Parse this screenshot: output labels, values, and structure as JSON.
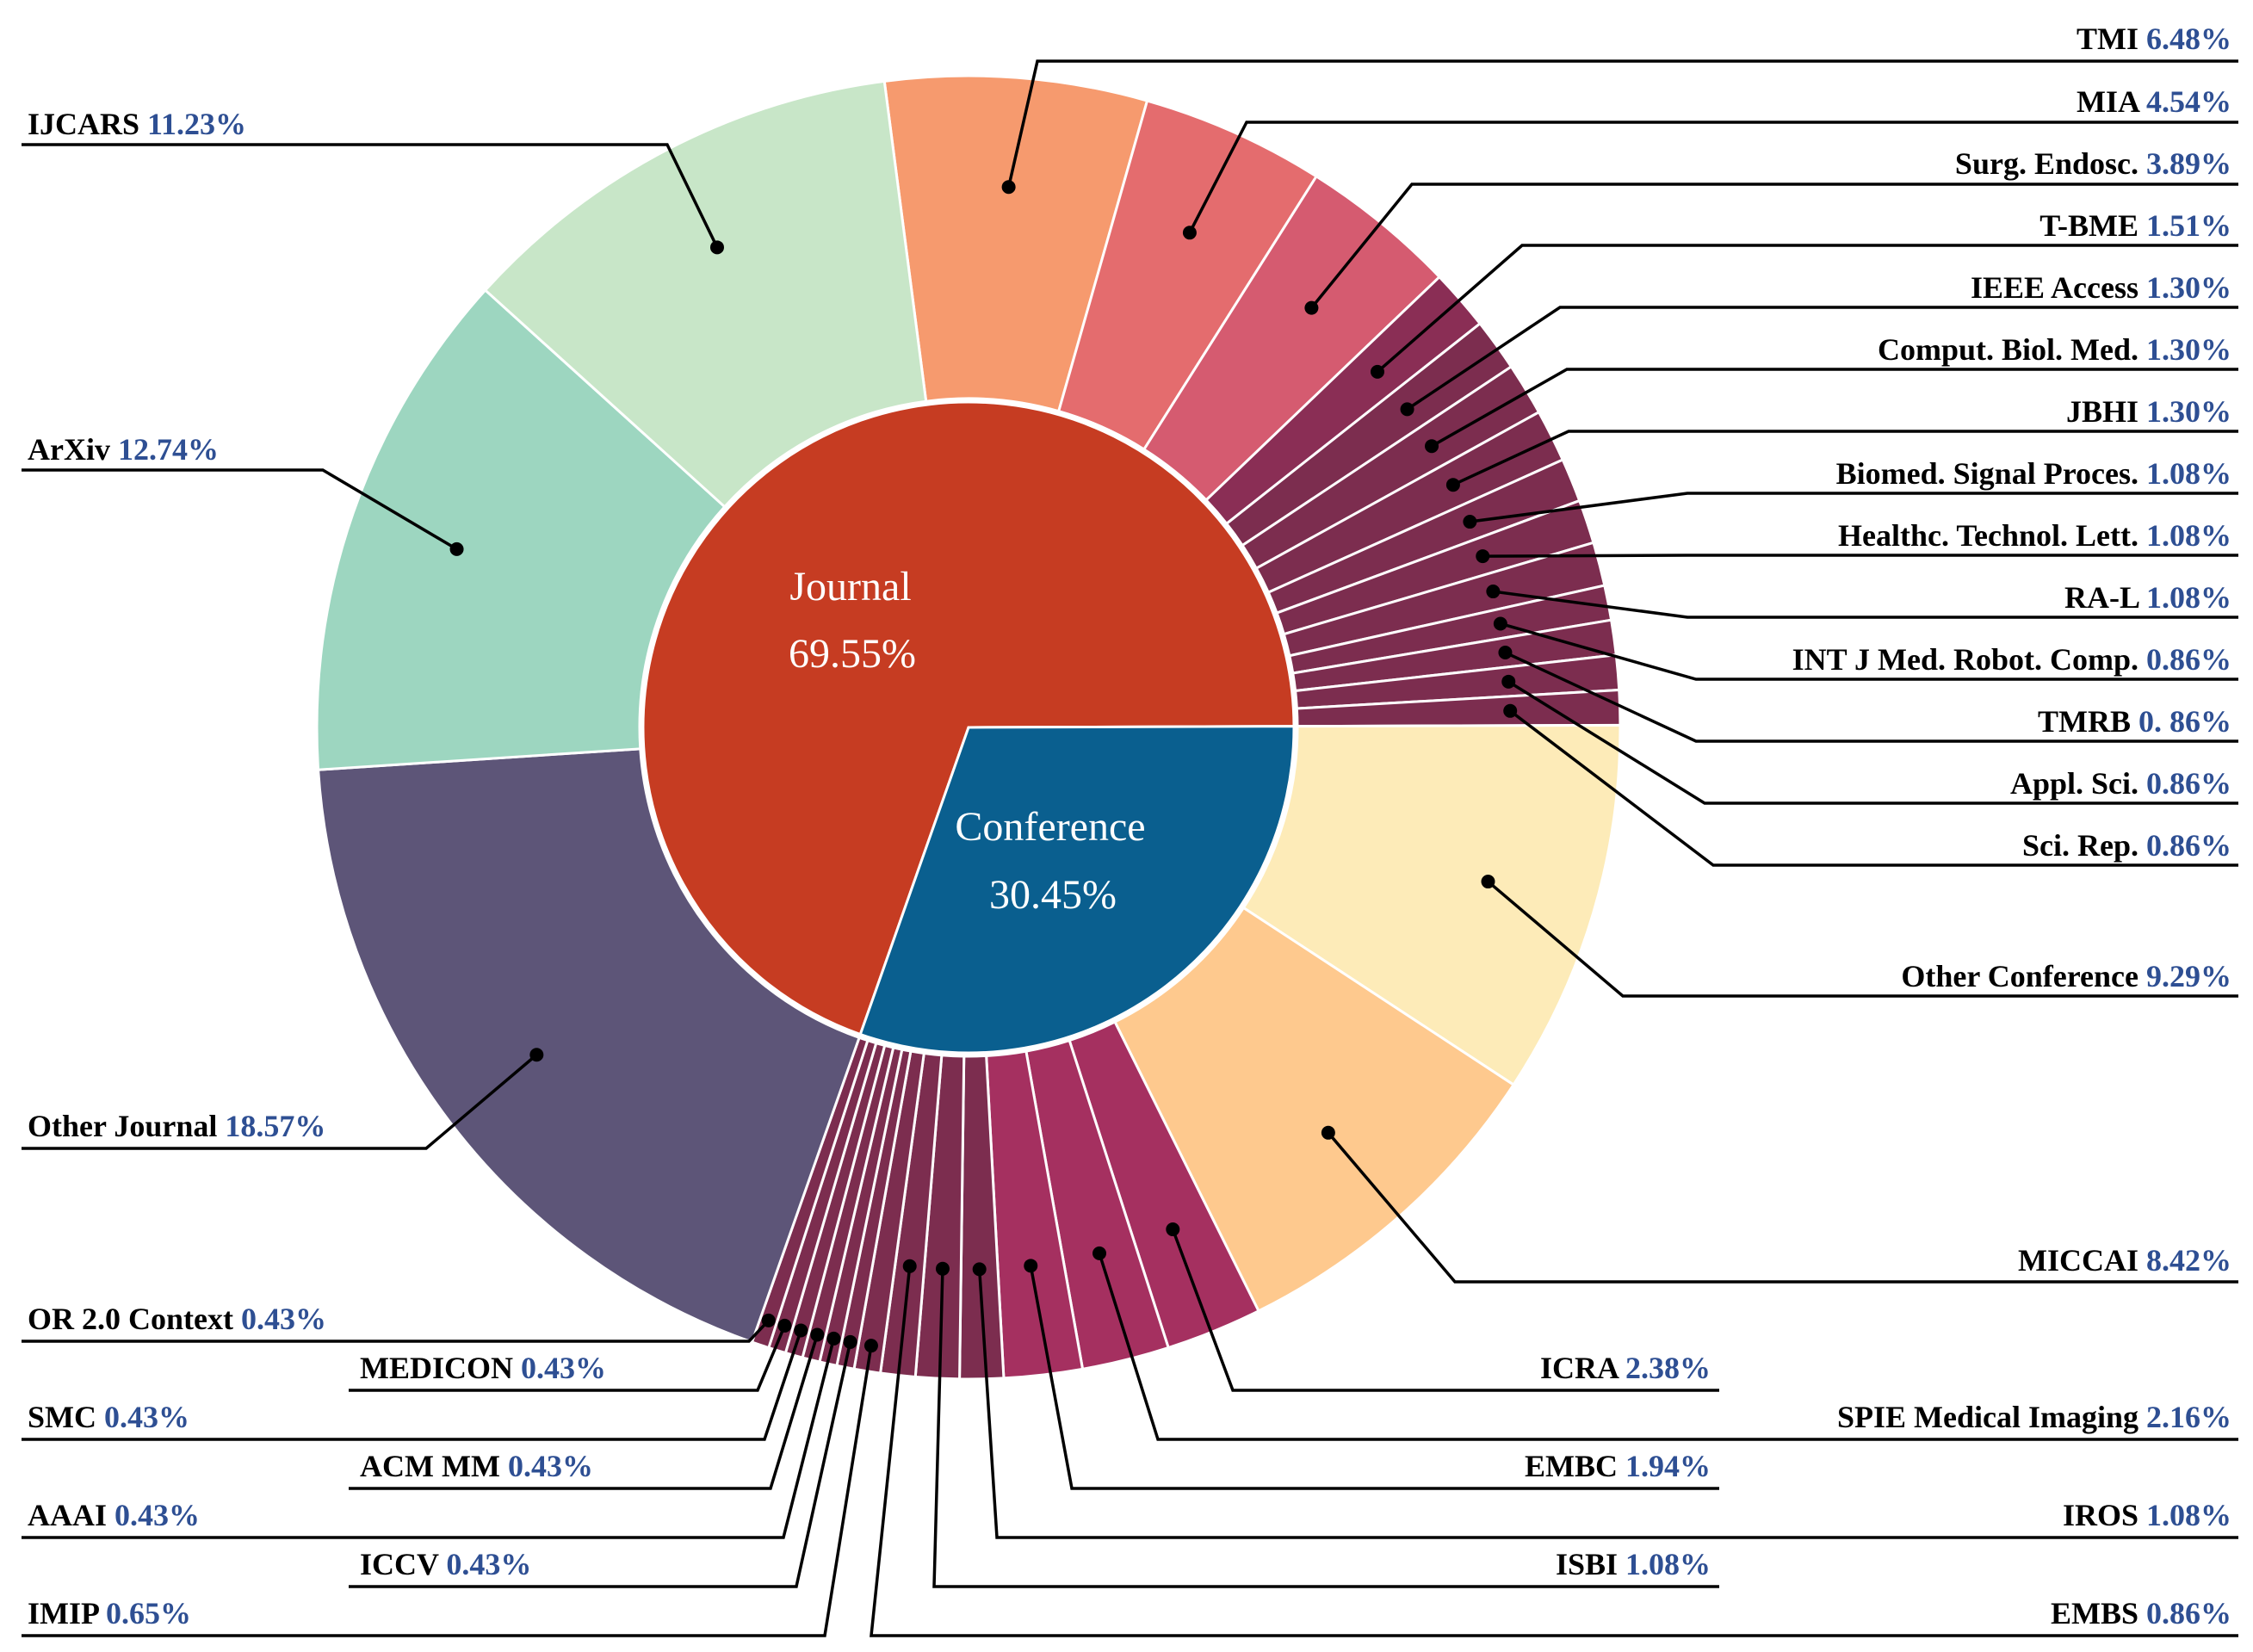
{
  "chart_data": {
    "type": "pie",
    "inner": [
      {
        "name": "Journal",
        "value": 69.55,
        "label": "69.55%",
        "color": "#c63c22"
      },
      {
        "name": "Conference",
        "value": 30.45,
        "label": "30.45%",
        "color": "#0a5f8f"
      }
    ],
    "outer": [
      {
        "name": "TMI",
        "pct": "6.48%",
        "value": 6.48,
        "color": "#f69a6e"
      },
      {
        "name": "MIA",
        "pct": "4.54%",
        "value": 4.54,
        "color": "#e46c6e"
      },
      {
        "name": "Surg. Endosc.",
        "pct": "3.89%",
        "value": 3.89,
        "color": "#d55b70"
      },
      {
        "name": "T-BME",
        "pct": "1.51%",
        "value": 1.51,
        "color": "#8a2e55"
      },
      {
        "name": "IEEE Access",
        "pct": "1.30%",
        "value": 1.3,
        "color": "#7c2d4f"
      },
      {
        "name": "Comput. Biol. Med.",
        "pct": "1.30%",
        "value": 1.3,
        "color": "#7c2d4f"
      },
      {
        "name": "JBHI",
        "pct": "1.30%",
        "value": 1.3,
        "color": "#7c2d4f"
      },
      {
        "name": "Biomed. Signal Proces.",
        "pct": "1.08%",
        "value": 1.08,
        "color": "#7c2d4f"
      },
      {
        "name": "Healthc. Technol. Lett.",
        "pct": "1.08%",
        "value": 1.08,
        "color": "#7c2d4f"
      },
      {
        "name": "RA-L",
        "pct": "1.08%",
        "value": 1.08,
        "color": "#7c2d4f"
      },
      {
        "name": "INT J Med. Robot. Comp.",
        "pct": "0.86%",
        "value": 0.86,
        "color": "#7c2d4f"
      },
      {
        "name": "TMRB",
        "pct": "0. 86%",
        "value": 0.86,
        "color": "#7c2d4f"
      },
      {
        "name": "Appl. Sci.",
        "pct": "0.86%",
        "value": 0.86,
        "color": "#7c2d4f"
      },
      {
        "name": "Sci. Rep.",
        "pct": "0.86%",
        "value": 0.86,
        "color": "#7c2d4f"
      },
      {
        "name": "Other Conference",
        "pct": "9.29%",
        "value": 9.29,
        "color": "#fdebb8"
      },
      {
        "name": "MICCAI",
        "pct": "8.42%",
        "value": 8.42,
        "color": "#fec98e"
      },
      {
        "name": "ICRA",
        "pct": "2.38%",
        "value": 2.38,
        "color": "#a53060"
      },
      {
        "name": "SPIE Medical Imaging",
        "pct": "2.16%",
        "value": 2.16,
        "color": "#a53060"
      },
      {
        "name": "EMBC",
        "pct": "1.94%",
        "value": 1.94,
        "color": "#a53060"
      },
      {
        "name": "IROS",
        "pct": "1.08%",
        "value": 1.08,
        "color": "#7c2d4f"
      },
      {
        "name": "ISBI",
        "pct": "1.08%",
        "value": 1.08,
        "color": "#7c2d4f"
      },
      {
        "name": "EMBS",
        "pct": "0.86%",
        "value": 0.86,
        "color": "#7c2d4f"
      },
      {
        "name": "IMIP",
        "pct": "0.65%",
        "value": 0.65,
        "color": "#7c2d4f"
      },
      {
        "name": "ICCV",
        "pct": "0.43%",
        "value": 0.43,
        "color": "#7c2d4f"
      },
      {
        "name": "AAAI",
        "pct": "0.43%",
        "value": 0.43,
        "color": "#7c2d4f"
      },
      {
        "name": "ACM MM",
        "pct": "0.43%",
        "value": 0.43,
        "color": "#7c2d4f"
      },
      {
        "name": "SMC",
        "pct": "0.43%",
        "value": 0.43,
        "color": "#7c2d4f"
      },
      {
        "name": "MEDICON",
        "pct": "0.43%",
        "value": 0.43,
        "color": "#7c2d4f"
      },
      {
        "name": "OR 2.0 Context",
        "pct": "0.43%",
        "value": 0.43,
        "color": "#7c2d4f"
      },
      {
        "name": "Other Journal",
        "pct": "18.57%",
        "value": 18.57,
        "color": "#5d5578"
      },
      {
        "name": "ArXiv",
        "pct": "12.74%",
        "value": 12.74,
        "color": "#9dd6c0"
      },
      {
        "name": "IJCARS",
        "pct": "11.23%",
        "value": 11.23,
        "color": "#c8e6c8"
      }
    ]
  }
}
